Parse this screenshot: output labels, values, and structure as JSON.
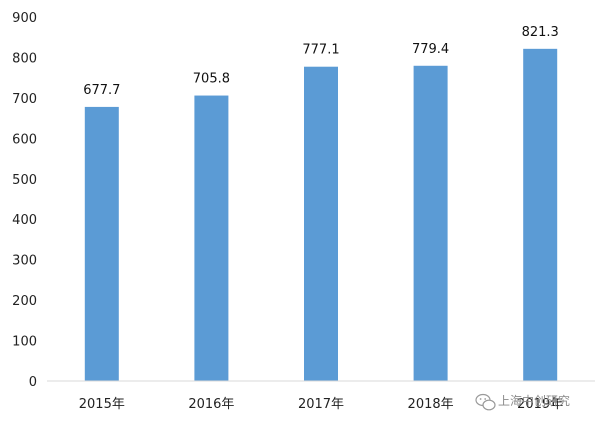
{
  "chart_data": {
    "type": "bar",
    "categories": [
      "2015年",
      "2016年",
      "2017年",
      "2018年",
      "2019年"
    ],
    "values": [
      677.7,
      705.8,
      777.1,
      779.4,
      821.3
    ],
    "data_labels": [
      "677.7",
      "705.8",
      "777.1",
      "779.4",
      "821.3"
    ],
    "title": "",
    "xlabel": "",
    "ylabel": "",
    "ylim": [
      0,
      900
    ],
    "yticks": [
      0,
      100,
      200,
      300,
      400,
      500,
      600,
      700,
      800,
      900
    ],
    "grid": false,
    "legend": "none",
    "bar_color": "#5b9bd5"
  },
  "watermark": {
    "text": "上海中创研究",
    "icon": "wechat-icon"
  }
}
